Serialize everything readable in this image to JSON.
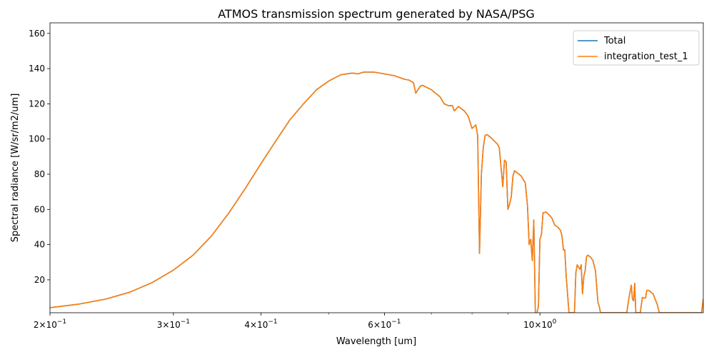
{
  "chart_data": {
    "type": "line",
    "title": "ATMOS transmission spectrum generated by NASA/PSG",
    "xlabel": "Wavelength [um]",
    "ylabel": "Spectral radiance [W/sr/m2/um]",
    "xscale": "log",
    "xlim": [
      0.2,
      1.71
    ],
    "ylim": [
      1.3,
      166
    ],
    "grid": false,
    "legend_position": "top-right",
    "x_major_ticks": [
      {
        "value": 0.2,
        "base": "2",
        "exp": "−1"
      },
      {
        "value": 0.3,
        "base": "3",
        "exp": "−1"
      },
      {
        "value": 0.4,
        "base": "4",
        "exp": "−1"
      },
      {
        "value": 0.6,
        "base": "6",
        "exp": "−1"
      },
      {
        "value": 1.0,
        "base": "10",
        "exp": "0"
      }
    ],
    "x_minor_ticks": [
      0.5,
      0.7,
      0.8,
      0.9
    ],
    "y_ticks": [
      20,
      40,
      60,
      80,
      100,
      120,
      140,
      160
    ],
    "x_tick_prefix": "×10",
    "series": [
      {
        "name": "Total",
        "color": "#1f77b4",
        "points": [
          [
            0.2,
            4.2
          ],
          [
            0.22,
            6.2
          ],
          [
            0.24,
            9.0
          ],
          [
            0.26,
            13.0
          ],
          [
            0.28,
            18.5
          ],
          [
            0.3,
            25.5
          ],
          [
            0.32,
            34
          ],
          [
            0.34,
            45
          ],
          [
            0.36,
            58
          ],
          [
            0.38,
            72
          ],
          [
            0.4,
            86
          ],
          [
            0.42,
            99
          ],
          [
            0.44,
            111
          ],
          [
            0.46,
            120
          ],
          [
            0.48,
            128
          ],
          [
            0.5,
            133
          ],
          [
            0.52,
            136.5
          ],
          [
            0.54,
            137.5
          ],
          [
            0.55,
            137
          ],
          [
            0.56,
            138
          ],
          [
            0.58,
            138
          ],
          [
            0.6,
            137
          ],
          [
            0.62,
            136
          ],
          [
            0.64,
            134
          ],
          [
            0.65,
            133.5
          ],
          [
            0.66,
            132
          ],
          [
            0.665,
            126
          ],
          [
            0.675,
            130
          ],
          [
            0.68,
            130.5
          ],
          [
            0.7,
            128
          ],
          [
            0.72,
            124
          ],
          [
            0.73,
            120
          ],
          [
            0.74,
            119
          ],
          [
            0.75,
            119
          ],
          [
            0.755,
            116
          ],
          [
            0.765,
            118.5
          ],
          [
            0.78,
            116
          ],
          [
            0.79,
            113
          ],
          [
            0.8,
            106
          ],
          [
            0.81,
            108
          ],
          [
            0.815,
            102
          ],
          [
            0.82,
            35
          ],
          [
            0.825,
            80
          ],
          [
            0.83,
            95
          ],
          [
            0.835,
            102
          ],
          [
            0.84,
            102.5
          ],
          [
            0.85,
            101
          ],
          [
            0.87,
            97
          ],
          [
            0.875,
            95
          ],
          [
            0.88,
            84
          ],
          [
            0.885,
            73
          ],
          [
            0.89,
            88
          ],
          [
            0.895,
            87
          ],
          [
            0.9,
            60
          ],
          [
            0.905,
            63
          ],
          [
            0.91,
            67
          ],
          [
            0.915,
            79
          ],
          [
            0.92,
            82
          ],
          [
            0.93,
            80.5
          ],
          [
            0.94,
            79
          ],
          [
            0.95,
            76
          ],
          [
            0.953,
            75
          ],
          [
            0.96,
            62
          ],
          [
            0.965,
            40
          ],
          [
            0.97,
            43
          ],
          [
            0.975,
            31
          ],
          [
            0.98,
            54
          ],
          [
            0.985,
            1.3
          ],
          [
            0.99,
            1.3
          ],
          [
            0.995,
            5
          ],
          [
            1.0,
            43
          ],
          [
            1.005,
            46
          ],
          [
            1.01,
            58
          ],
          [
            1.02,
            58.5
          ],
          [
            1.03,
            57
          ],
          [
            1.04,
            55
          ],
          [
            1.05,
            51
          ],
          [
            1.06,
            50
          ],
          [
            1.07,
            48
          ],
          [
            1.075,
            45
          ],
          [
            1.08,
            37
          ],
          [
            1.085,
            37
          ],
          [
            1.09,
            22
          ],
          [
            1.1,
            1.3
          ],
          [
            1.12,
            1.3
          ],
          [
            1.125,
            24
          ],
          [
            1.13,
            28.5
          ],
          [
            1.14,
            26
          ],
          [
            1.145,
            28.5
          ],
          [
            1.15,
            12
          ],
          [
            1.155,
            22
          ],
          [
            1.16,
            25
          ],
          [
            1.165,
            33
          ],
          [
            1.17,
            34
          ],
          [
            1.18,
            33
          ],
          [
            1.19,
            31
          ],
          [
            1.2,
            25
          ],
          [
            1.21,
            7
          ],
          [
            1.215,
            5
          ],
          [
            1.22,
            1.3
          ],
          [
            1.33,
            1.3
          ],
          [
            1.34,
            10
          ],
          [
            1.35,
            17
          ],
          [
            1.355,
            9
          ],
          [
            1.36,
            8
          ],
          [
            1.365,
            18
          ],
          [
            1.37,
            1.3
          ],
          [
            1.39,
            1.3
          ],
          [
            1.4,
            10
          ],
          [
            1.41,
            9.5
          ],
          [
            1.415,
            10
          ],
          [
            1.42,
            14
          ],
          [
            1.43,
            14
          ],
          [
            1.45,
            12
          ],
          [
            1.46,
            9
          ],
          [
            1.47,
            6
          ],
          [
            1.48,
            1.3
          ],
          [
            1.7,
            1.3
          ],
          [
            1.71,
            9
          ]
        ]
      },
      {
        "name": "integration_test_1",
        "color": "#ff7f0e",
        "points": [
          [
            0.2,
            4.2
          ],
          [
            0.22,
            6.2
          ],
          [
            0.24,
            9.0
          ],
          [
            0.26,
            13.0
          ],
          [
            0.28,
            18.5
          ],
          [
            0.3,
            25.5
          ],
          [
            0.32,
            34
          ],
          [
            0.34,
            45
          ],
          [
            0.36,
            58
          ],
          [
            0.38,
            72
          ],
          [
            0.4,
            86
          ],
          [
            0.42,
            99
          ],
          [
            0.44,
            111
          ],
          [
            0.46,
            120
          ],
          [
            0.48,
            128
          ],
          [
            0.5,
            133
          ],
          [
            0.52,
            136.5
          ],
          [
            0.54,
            137.5
          ],
          [
            0.55,
            137
          ],
          [
            0.56,
            138
          ],
          [
            0.58,
            138
          ],
          [
            0.6,
            137
          ],
          [
            0.62,
            136
          ],
          [
            0.64,
            134
          ],
          [
            0.65,
            133.5
          ],
          [
            0.66,
            132
          ],
          [
            0.665,
            126
          ],
          [
            0.675,
            130
          ],
          [
            0.68,
            130.5
          ],
          [
            0.7,
            128
          ],
          [
            0.72,
            124
          ],
          [
            0.73,
            120
          ],
          [
            0.74,
            119
          ],
          [
            0.75,
            119
          ],
          [
            0.755,
            116
          ],
          [
            0.765,
            118.5
          ],
          [
            0.78,
            116
          ],
          [
            0.79,
            113
          ],
          [
            0.8,
            106
          ],
          [
            0.81,
            108
          ],
          [
            0.815,
            102
          ],
          [
            0.82,
            35
          ],
          [
            0.825,
            80
          ],
          [
            0.83,
            95
          ],
          [
            0.835,
            102
          ],
          [
            0.84,
            102.5
          ],
          [
            0.85,
            101
          ],
          [
            0.87,
            97
          ],
          [
            0.875,
            95
          ],
          [
            0.88,
            84
          ],
          [
            0.885,
            73
          ],
          [
            0.89,
            88
          ],
          [
            0.895,
            87
          ],
          [
            0.9,
            60
          ],
          [
            0.905,
            63
          ],
          [
            0.91,
            67
          ],
          [
            0.915,
            79
          ],
          [
            0.92,
            82
          ],
          [
            0.93,
            80.5
          ],
          [
            0.94,
            79
          ],
          [
            0.95,
            76
          ],
          [
            0.953,
            75
          ],
          [
            0.96,
            62
          ],
          [
            0.965,
            40
          ],
          [
            0.97,
            43
          ],
          [
            0.975,
            31
          ],
          [
            0.98,
            54
          ],
          [
            0.985,
            1.3
          ],
          [
            0.99,
            1.3
          ],
          [
            0.995,
            5
          ],
          [
            1.0,
            43
          ],
          [
            1.005,
            46
          ],
          [
            1.01,
            58
          ],
          [
            1.02,
            58.5
          ],
          [
            1.03,
            57
          ],
          [
            1.04,
            55
          ],
          [
            1.05,
            51
          ],
          [
            1.06,
            50
          ],
          [
            1.07,
            48
          ],
          [
            1.075,
            45
          ],
          [
            1.08,
            37
          ],
          [
            1.085,
            37
          ],
          [
            1.09,
            22
          ],
          [
            1.1,
            1.3
          ],
          [
            1.12,
            1.3
          ],
          [
            1.125,
            24
          ],
          [
            1.13,
            28.5
          ],
          [
            1.14,
            26
          ],
          [
            1.145,
            28.5
          ],
          [
            1.15,
            12
          ],
          [
            1.155,
            22
          ],
          [
            1.16,
            25
          ],
          [
            1.165,
            33
          ],
          [
            1.17,
            34
          ],
          [
            1.18,
            33
          ],
          [
            1.19,
            31
          ],
          [
            1.2,
            25
          ],
          [
            1.21,
            7
          ],
          [
            1.215,
            5
          ],
          [
            1.22,
            1.3
          ],
          [
            1.33,
            1.3
          ],
          [
            1.34,
            10
          ],
          [
            1.35,
            17
          ],
          [
            1.355,
            9
          ],
          [
            1.36,
            8
          ],
          [
            1.365,
            18
          ],
          [
            1.37,
            1.3
          ],
          [
            1.39,
            1.3
          ],
          [
            1.4,
            10
          ],
          [
            1.41,
            9.5
          ],
          [
            1.415,
            10
          ],
          [
            1.42,
            14
          ],
          [
            1.43,
            14
          ],
          [
            1.45,
            12
          ],
          [
            1.46,
            9
          ],
          [
            1.47,
            6
          ],
          [
            1.48,
            1.3
          ],
          [
            1.7,
            1.3
          ],
          [
            1.71,
            9
          ]
        ]
      }
    ]
  }
}
